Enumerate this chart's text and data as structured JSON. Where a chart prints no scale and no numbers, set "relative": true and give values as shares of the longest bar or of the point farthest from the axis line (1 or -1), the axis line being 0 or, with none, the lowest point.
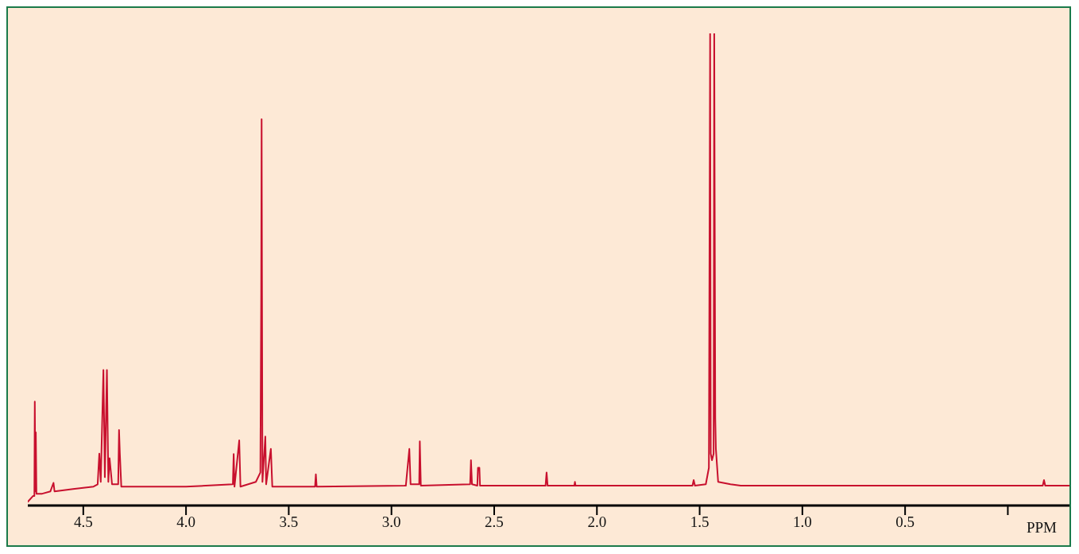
{
  "chart_data": {
    "type": "line",
    "relative": true,
    "xlabel": "PPM",
    "xlim": [
      4.77,
      -0.3
    ],
    "xticks": [
      4.5,
      {
        "value": 4,
        "label": "4.0"
      },
      3.5,
      {
        "value": 3,
        "label": "3.0"
      },
      2.5,
      {
        "value": 2,
        "label": "2.0"
      },
      1.5,
      {
        "value": 1,
        "label": "1.0"
      },
      0.5,
      {
        "value": 0,
        "label": null
      }
    ],
    "grid": false,
    "legend": false,
    "marker": "none",
    "line_style": "solid",
    "series": [
      {
        "color": "#c8102e",
        "x": [
          4.77,
          4.745,
          4.738,
          4.736,
          4.733,
          4.731,
          4.728,
          4.7,
          4.66,
          4.645,
          4.64,
          4.55,
          4.45,
          4.43,
          4.422,
          4.415,
          4.402,
          4.395,
          4.385,
          4.378,
          4.372,
          4.36,
          4.33,
          4.326,
          4.322,
          4.315,
          4.0,
          3.772,
          3.768,
          3.764,
          3.741,
          3.735,
          3.66,
          3.638,
          3.634,
          3.632,
          3.628,
          3.614,
          3.61,
          3.587,
          3.58,
          3.372,
          3.368,
          3.364,
          2.93,
          2.913,
          2.907,
          2.865,
          2.862,
          2.857,
          2.617,
          2.613,
          2.608,
          2.582,
          2.579,
          2.572,
          2.569,
          2.25,
          2.245,
          2.24,
          2.11,
          2.107,
          2.104,
          1.535,
          1.529,
          1.523,
          1.47,
          1.455,
          1.449,
          1.446,
          1.44,
          1.432,
          1.429,
          1.424,
          1.421,
          1.41,
          1.35,
          1.3,
          -0.17,
          -0.176,
          -0.182,
          -0.3
        ],
        "values": [
          0.008,
          0.02,
          0.02,
          0.22,
          0.03,
          0.155,
          0.025,
          0.025,
          0.03,
          0.048,
          0.03,
          0.035,
          0.04,
          0.045,
          0.11,
          0.05,
          0.287,
          0.06,
          0.287,
          0.05,
          0.1,
          0.045,
          0.045,
          0.16,
          0.11,
          0.04,
          0.04,
          0.045,
          0.109,
          0.04,
          0.138,
          0.04,
          0.05,
          0.07,
          0.45,
          0.818,
          0.05,
          0.146,
          0.045,
          0.12,
          0.04,
          0.04,
          0.066,
          0.04,
          0.042,
          0.12,
          0.045,
          0.045,
          0.136,
          0.042,
          0.045,
          0.096,
          0.045,
          0.042,
          0.08,
          0.08,
          0.042,
          0.042,
          0.07,
          0.042,
          0.042,
          0.05,
          0.042,
          0.042,
          0.054,
          0.042,
          0.045,
          0.08,
          1,
          0.11,
          0.096,
          0.11,
          1,
          0.185,
          0.12,
          0.05,
          0.045,
          0.042,
          0.042,
          0.054,
          0.042,
          0.042
        ]
      }
    ]
  }
}
